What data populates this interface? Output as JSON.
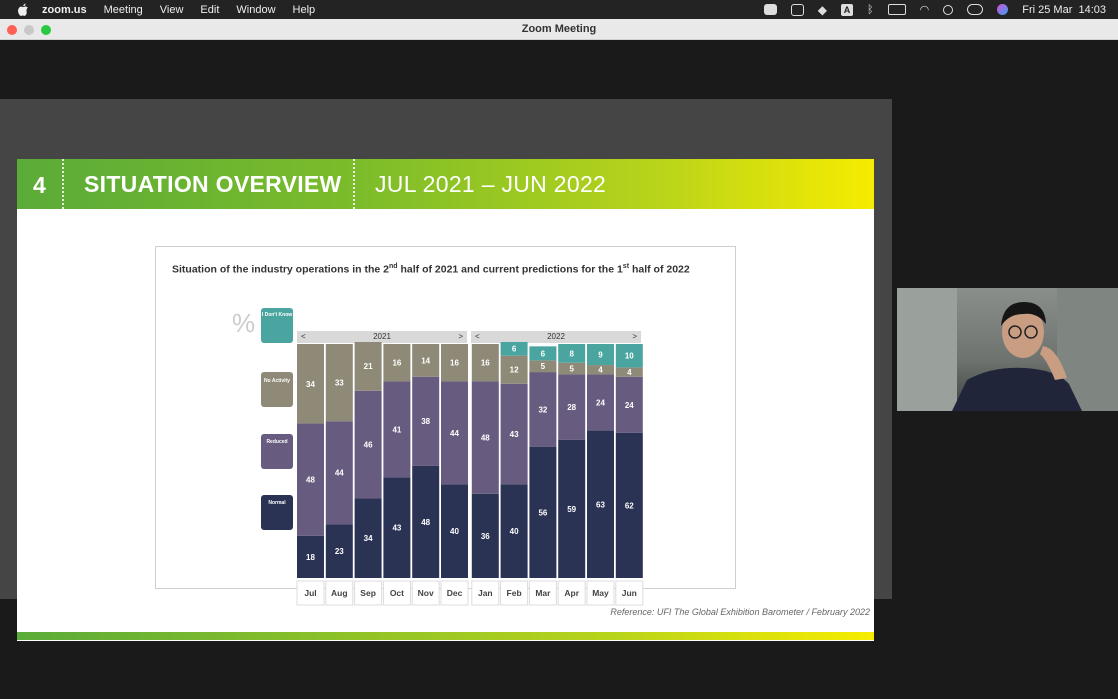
{
  "menubar": {
    "app_name": "zoom.us",
    "items": [
      "Meeting",
      "View",
      "Edit",
      "Window",
      "Help"
    ],
    "clock": "Fri 25 Mar  14:03"
  },
  "window": {
    "title": "Zoom Meeting"
  },
  "slide": {
    "number": "4",
    "title": "SITUATION OVERVIEW",
    "period": "JUL 2021 – JUN 2022",
    "reference": "Reference: UFI The Global Exhibition Barometer / February 2022"
  },
  "chart_data": {
    "type": "bar",
    "stacked": true,
    "title_parts": [
      "Situation of the industry operations in the 2",
      "nd",
      " half of 2021 and current predictions for the 1",
      "st",
      " half of 2022"
    ],
    "unit_label": "%",
    "year_groups": [
      {
        "label": "2021",
        "prev": "<",
        "next": ">"
      },
      {
        "label": "2022",
        "prev": "<",
        "next": ">"
      }
    ],
    "categories": [
      "Jul",
      "Aug",
      "Sep",
      "Oct",
      "Nov",
      "Dec",
      "Jan",
      "Feb",
      "Mar",
      "Apr",
      "May",
      "Jun"
    ],
    "series": [
      {
        "name": "Normal",
        "color": "#2b3354",
        "values": [
          18,
          23,
          34,
          43,
          48,
          40,
          36,
          40,
          56,
          59,
          63,
          62
        ]
      },
      {
        "name": "Reduced",
        "color": "#675c7f",
        "values": [
          48,
          44,
          46,
          41,
          38,
          44,
          48,
          43,
          32,
          28,
          24,
          24
        ]
      },
      {
        "name": "No Activity",
        "color": "#8f8a78",
        "values": [
          34,
          33,
          21,
          16,
          14,
          16,
          16,
          12,
          5,
          5,
          4,
          4
        ]
      },
      {
        "name": "I Don't Know",
        "color": "#4aa4a0",
        "values": [
          0,
          0,
          0,
          0,
          0,
          0,
          0,
          6,
          6,
          8,
          9,
          10
        ]
      }
    ],
    "ylim": [
      0,
      100
    ]
  }
}
